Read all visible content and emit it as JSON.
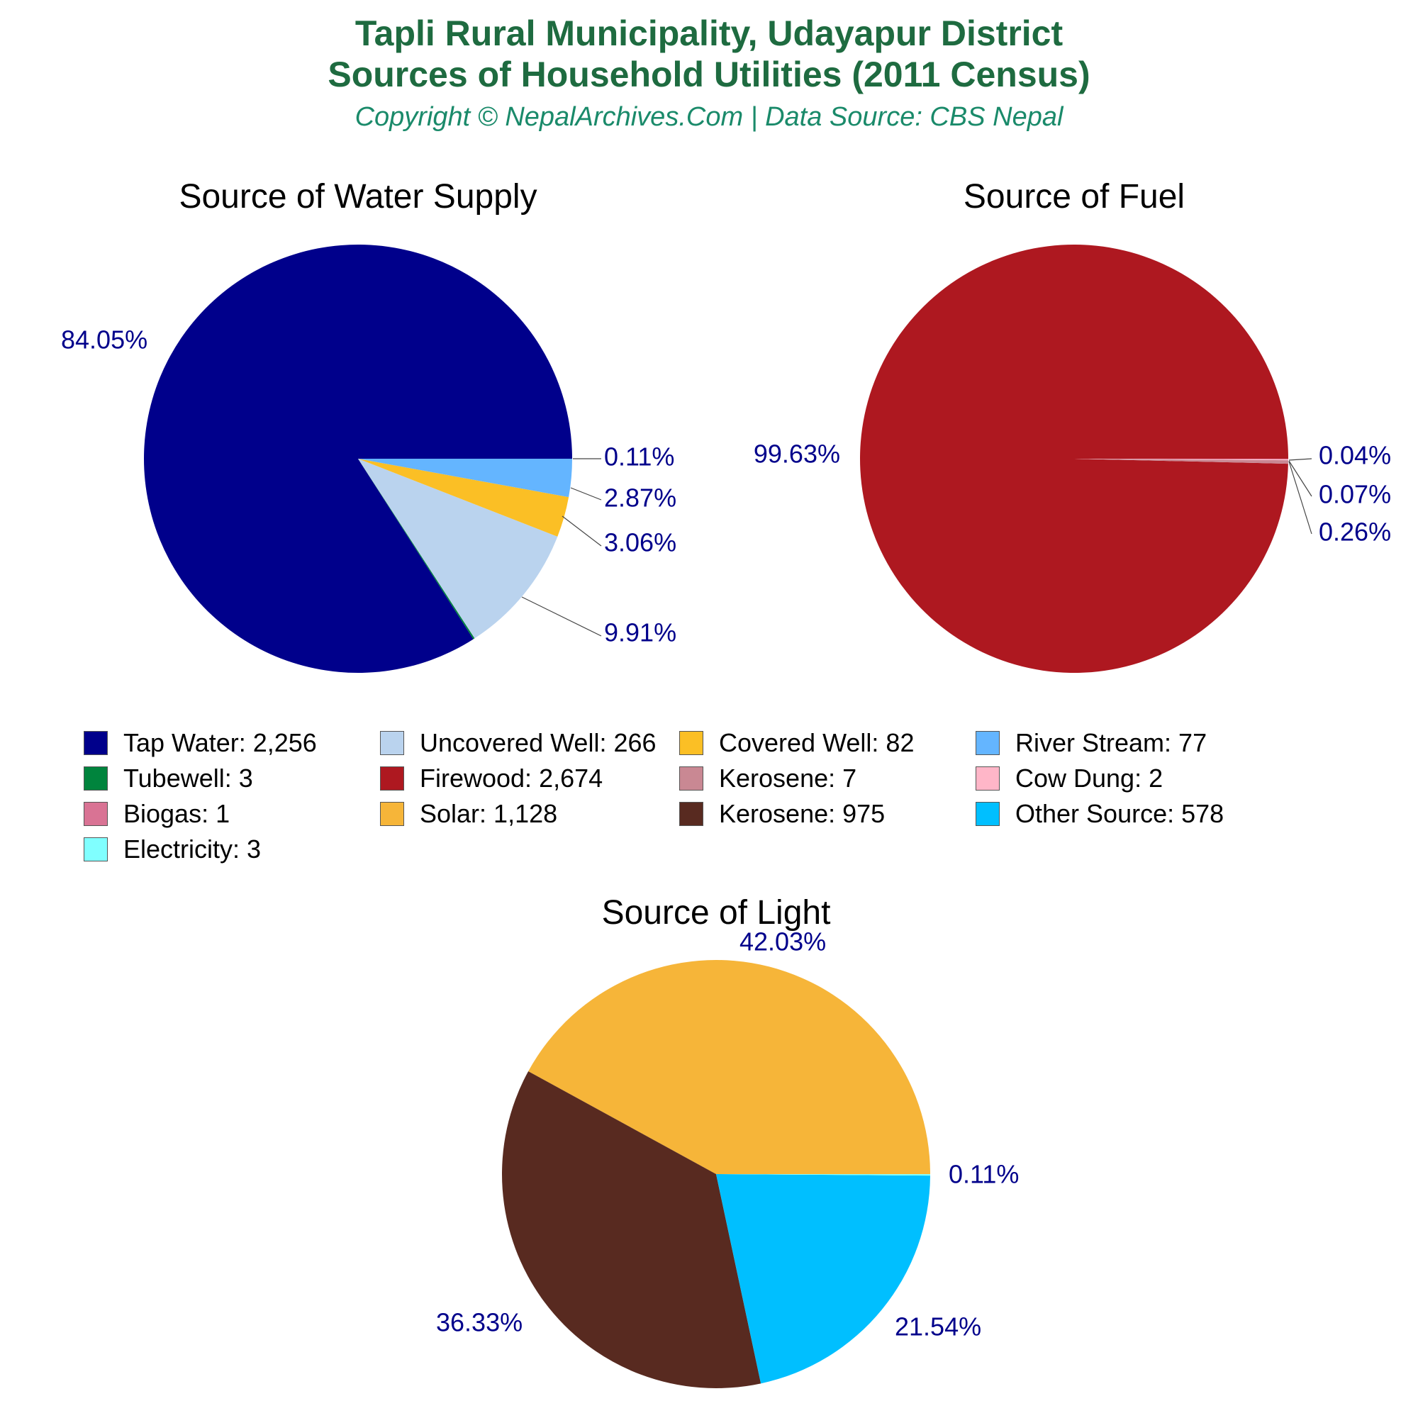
{
  "header": {
    "title_line1": "Tapli Rural Municipality, Udayapur District",
    "title_line2": "Sources of Household Utilities (2011 Census)",
    "subtitle": "Copyright © NepalArchives.Com | Data Source: CBS Nepal"
  },
  "chart_data": [
    {
      "type": "pie",
      "title": "Source of Water Supply",
      "slices": [
        {
          "label": "Tap Water",
          "value": 2256,
          "percent_label": "84.05%",
          "color": "#00008b"
        },
        {
          "label": "Tubewell",
          "value": 3,
          "percent_label": "0.11%",
          "color": "#00843d"
        },
        {
          "label": "Uncovered Well",
          "value": 266,
          "percent_label": "9.91%",
          "color": "#bad3ee"
        },
        {
          "label": "Covered Well",
          "value": 82,
          "percent_label": "3.06%",
          "color": "#fbbf25"
        },
        {
          "label": "River Stream",
          "value": 77,
          "percent_label": "2.87%",
          "color": "#64b5ff"
        }
      ]
    },
    {
      "type": "pie",
      "title": "Source of Fuel",
      "slices": [
        {
          "label": "Firewood",
          "value": 2674,
          "percent_label": "99.63%",
          "color": "#ae1820"
        },
        {
          "label": "Kerosene",
          "value": 7,
          "percent_label": "0.26%",
          "color": "#c98893"
        },
        {
          "label": "Cow Dung",
          "value": 2,
          "percent_label": "0.07%",
          "color": "#ffb6c8"
        },
        {
          "label": "Biogas",
          "value": 1,
          "percent_label": "0.04%",
          "color": "#d97394"
        }
      ]
    },
    {
      "type": "pie",
      "title": "Source of Light",
      "slices": [
        {
          "label": "Solar",
          "value": 1128,
          "percent_label": "42.03%",
          "color": "#f6b539"
        },
        {
          "label": "Kerosene",
          "value": 975,
          "percent_label": "36.33%",
          "color": "#582a20"
        },
        {
          "label": "Other Source",
          "value": 578,
          "percent_label": "21.54%",
          "color": "#00bfff"
        },
        {
          "label": "Electricity",
          "value": 3,
          "percent_label": "0.11%",
          "color": "#80ffff"
        }
      ]
    }
  ],
  "legend": {
    "items": [
      {
        "text": "Tap Water: 2,256",
        "color": "#00008b"
      },
      {
        "text": "Uncovered Well: 266",
        "color": "#bad3ee"
      },
      {
        "text": "Covered Well: 82",
        "color": "#fbbf25"
      },
      {
        "text": "River Stream: 77",
        "color": "#64b5ff"
      },
      {
        "text": "Tubewell: 3",
        "color": "#00843d"
      },
      {
        "text": "Firewood: 2,674",
        "color": "#ae1820"
      },
      {
        "text": "Kerosene: 7",
        "color": "#c98893"
      },
      {
        "text": "Cow Dung: 2",
        "color": "#ffb6c8"
      },
      {
        "text": "Biogas: 1",
        "color": "#d97394"
      },
      {
        "text": "Solar: 1,128",
        "color": "#f6b539"
      },
      {
        "text": "Kerosene: 975",
        "color": "#582a20"
      },
      {
        "text": "Other Source: 578",
        "color": "#00bfff"
      },
      {
        "text": "Electricity: 3",
        "color": "#80ffff"
      }
    ]
  },
  "styles": {
    "title_color": "#1e6b40",
    "subtitle_color": "#1a8a6a",
    "percent_label_color": "#00008b",
    "chart_title_color": "#000000"
  }
}
